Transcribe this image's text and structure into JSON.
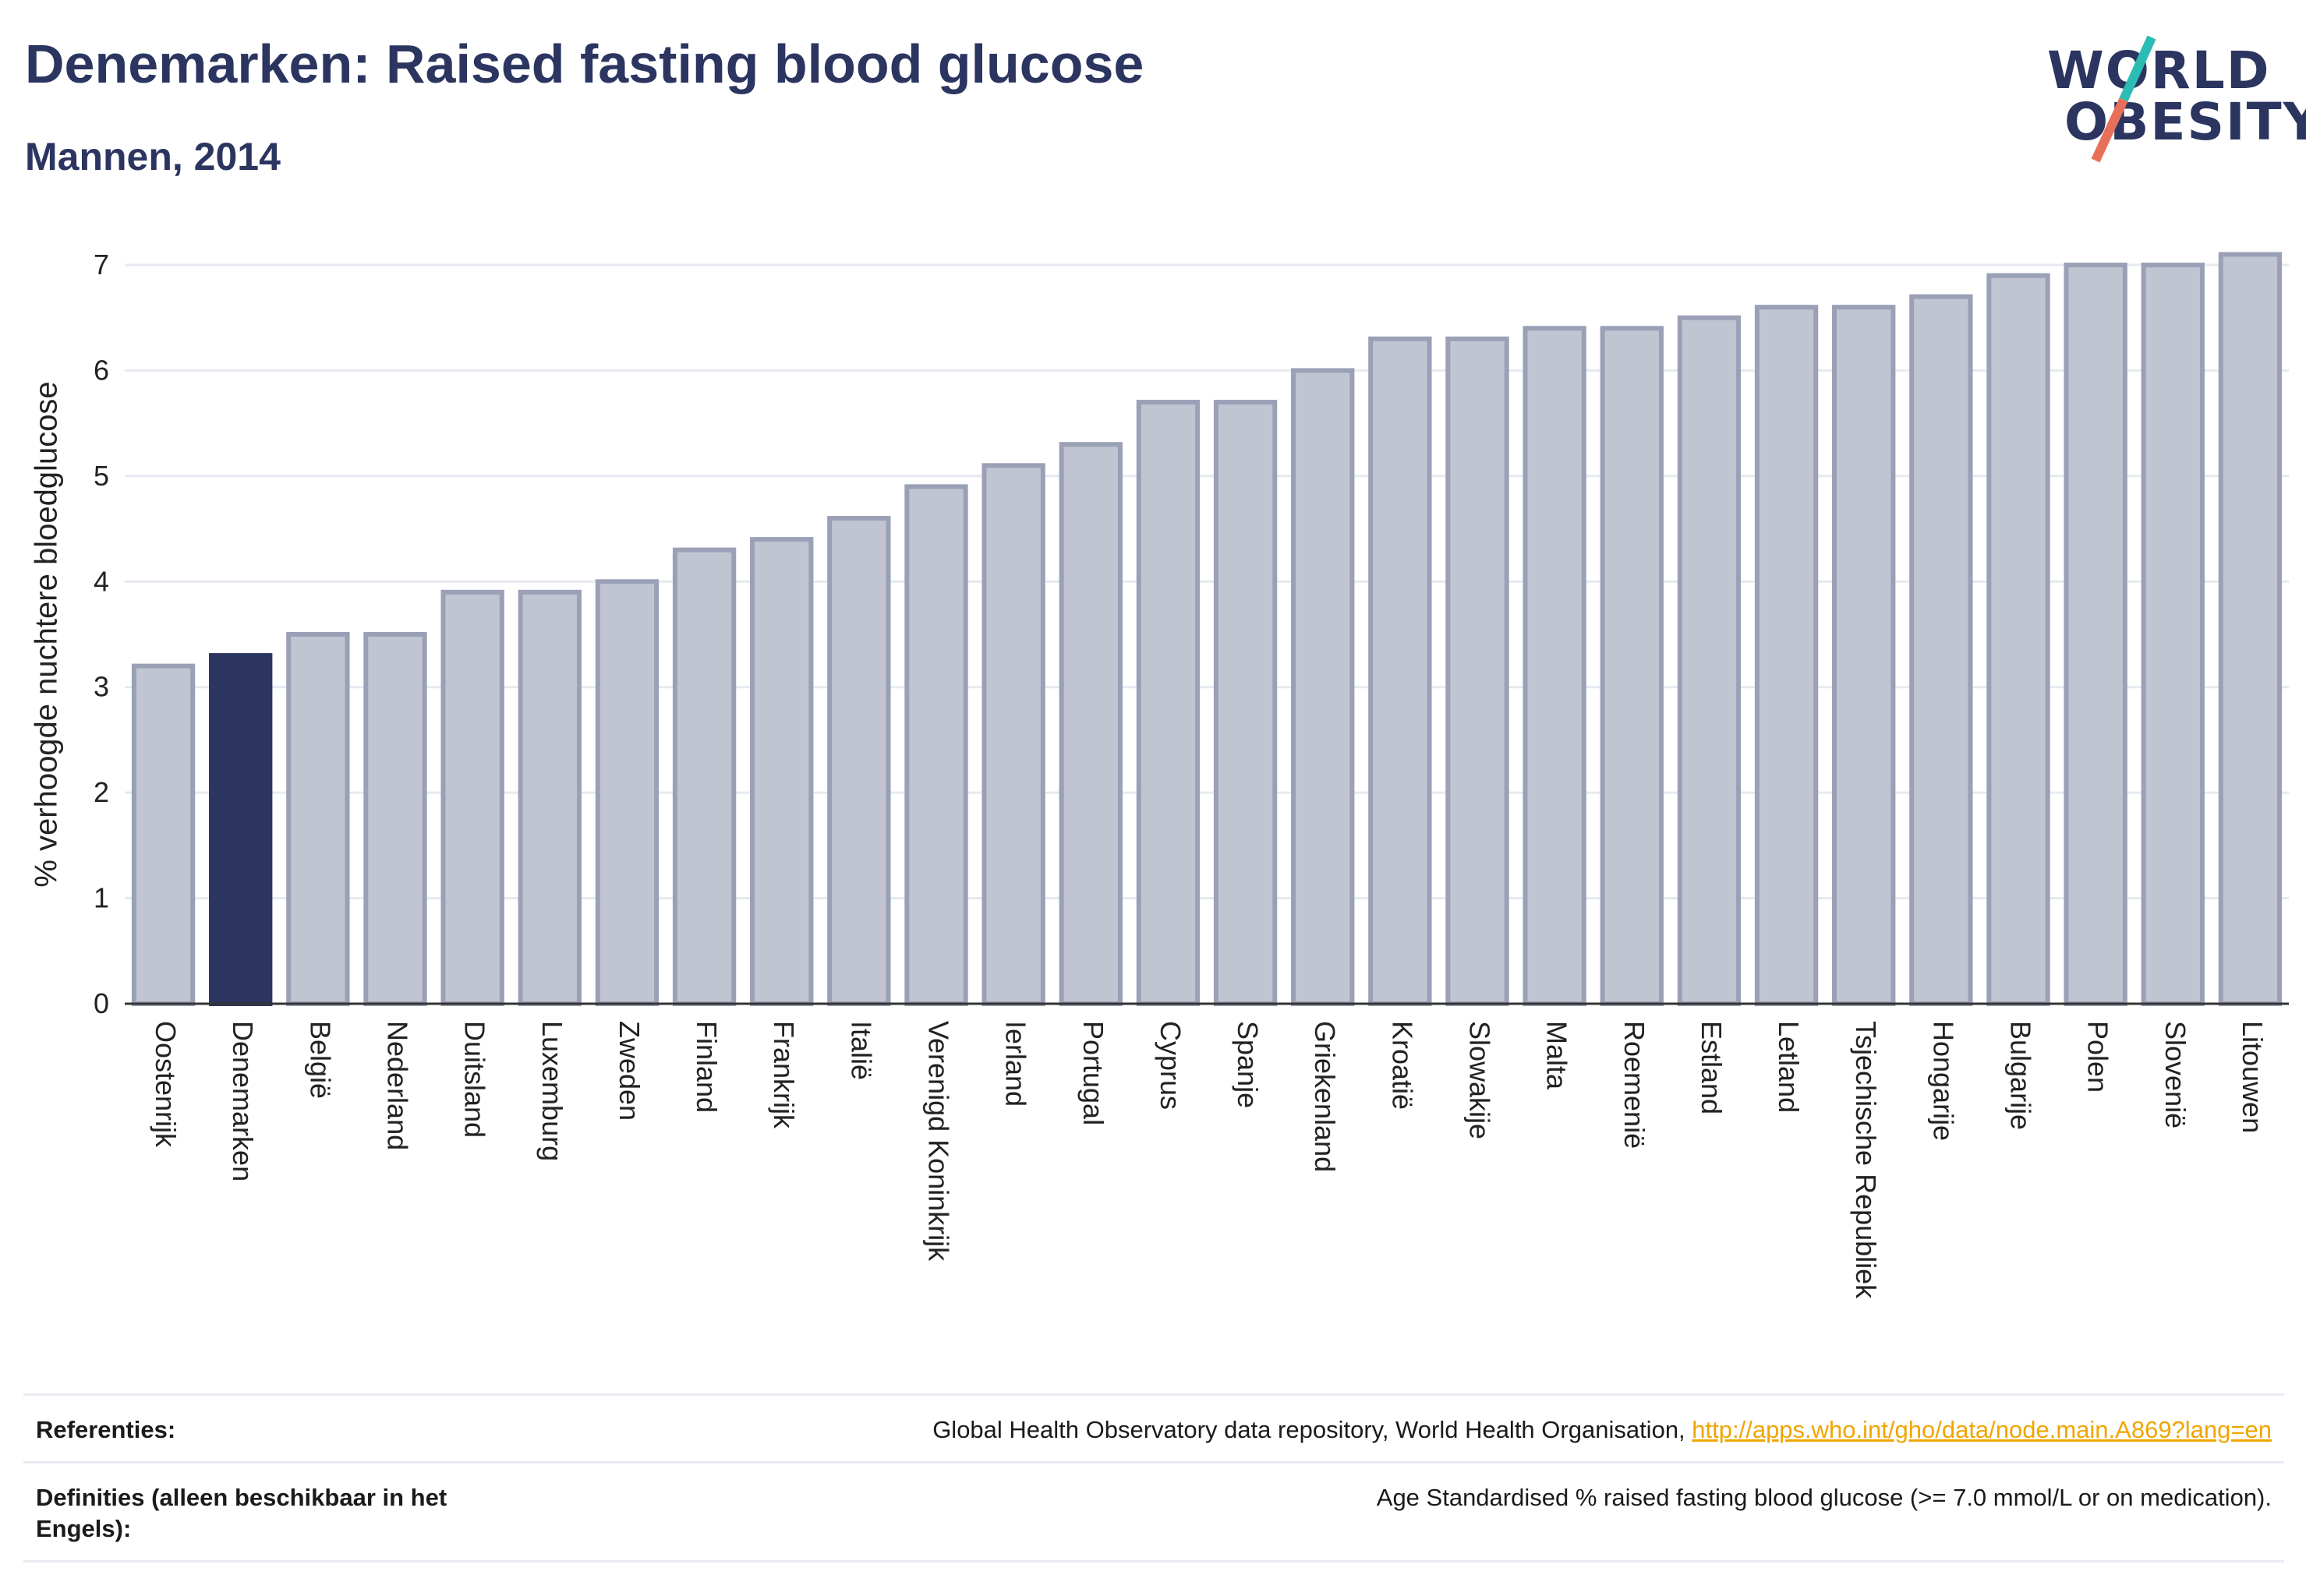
{
  "header": {
    "title": "Denemarken: Raised fasting blood glucose",
    "subtitle": "Mannen, 2014"
  },
  "logo": {
    "line1": "WORLD",
    "line2": "OBESITY",
    "colors": {
      "text": "#2b3560",
      "slash_top": "#2bbdb3",
      "slash_bottom": "#e8705a"
    }
  },
  "chart_data": {
    "type": "bar",
    "title": "",
    "xlabel": "",
    "ylabel": "% verhoogde nuchtere bloedglucose",
    "ylim": [
      0,
      7
    ],
    "yticks": [
      0,
      1,
      2,
      3,
      4,
      5,
      6,
      7
    ],
    "grid": true,
    "highlight": "Denemarken",
    "colors": {
      "bar": "#c1c5d1",
      "bar_border": "#9aa0b6",
      "highlight": "#2b3560",
      "grid": "#e6e9f0",
      "axis": "#333333"
    },
    "categories": [
      "Oostenrijk",
      "Denemarken",
      "België",
      "Nederland",
      "Duitsland",
      "Luxemburg",
      "Zweden",
      "Finland",
      "Frankrijk",
      "Italië",
      "Verenigd Koninkrijk",
      "Ierland",
      "Portugal",
      "Cyprus",
      "Spanje",
      "Griekenland",
      "Kroatië",
      "Slowakije",
      "Malta",
      "Roemenië",
      "Estland",
      "Letland",
      "Tsjechische Republiek",
      "Hongarije",
      "Bulgarije",
      "Polen",
      "Slovenië",
      "Litouwen"
    ],
    "values": [
      3.2,
      3.3,
      3.5,
      3.5,
      3.9,
      3.9,
      4.0,
      4.3,
      4.4,
      4.6,
      4.9,
      5.1,
      5.3,
      5.7,
      5.7,
      6.0,
      6.3,
      6.3,
      6.4,
      6.4,
      6.5,
      6.6,
      6.6,
      6.7,
      6.9,
      7.0,
      7.0,
      7.1
    ]
  },
  "references": {
    "ref_label": "Referenties:",
    "ref_text": "Global Health Observatory data repository, World Health Organisation, ",
    "ref_link": "http://apps.who.int/gho/data/node.main.A869?lang=en",
    "def_label": "Definities (alleen beschikbaar in het Engels):",
    "def_text": "Age Standardised % raised fasting blood glucose (>= 7.0 mmol/L or on medication)."
  }
}
